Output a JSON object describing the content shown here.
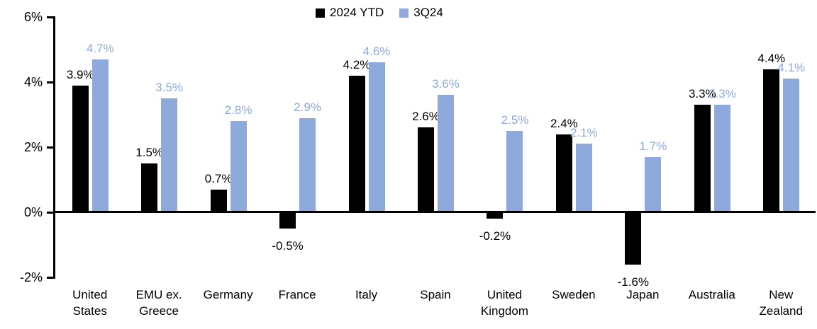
{
  "chart_data": {
    "type": "bar",
    "title": "",
    "xlabel": "",
    "ylabel": "",
    "categories": [
      "United\nStates",
      "EMU ex.\nGreece",
      "Germany",
      "France",
      "Italy",
      "Spain",
      "United\nKingdom",
      "Sweden",
      "Japan",
      "Australia",
      "New\nZealand"
    ],
    "series": [
      {
        "name": "2024 YTD",
        "color": "#000000",
        "values": [
          3.9,
          1.5,
          0.7,
          -0.5,
          4.2,
          2.6,
          -0.2,
          2.4,
          -1.6,
          3.3,
          4.4
        ],
        "labels": [
          "3.9%",
          "1.5%",
          "0.7%",
          "-0.5%",
          "4.2%",
          "2.6%",
          "-0.2%",
          "2.4%",
          "-1.6%",
          "3.3%",
          "4.4%"
        ]
      },
      {
        "name": "3Q24",
        "color": "#8EA9DB",
        "values": [
          4.7,
          3.5,
          2.8,
          2.9,
          4.6,
          3.6,
          2.5,
          2.1,
          1.7,
          3.3,
          4.1
        ],
        "labels": [
          "4.7%",
          "3.5%",
          "2.8%",
          "2.9%",
          "4.6%",
          "3.6%",
          "2.5%",
          "2.1%",
          "1.7%",
          "3.3%",
          "4.1%"
        ]
      }
    ],
    "ylim": [
      -2,
      6
    ],
    "yticks": [
      {
        "value": 6,
        "label": "6%"
      },
      {
        "value": 4,
        "label": "4%"
      },
      {
        "value": 2,
        "label": "2%"
      },
      {
        "value": 0,
        "label": "0%"
      },
      {
        "value": -2,
        "label": "-2%"
      }
    ],
    "grid": false,
    "legend_position": "top-center",
    "axis_color": "#000000",
    "background_color": "#FFFFFF"
  }
}
